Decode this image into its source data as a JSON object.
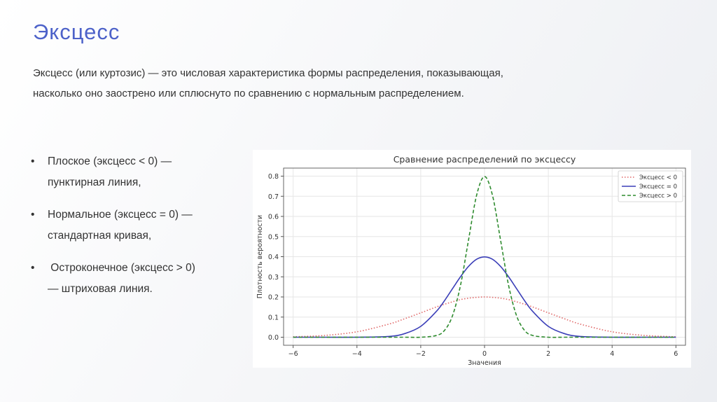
{
  "slide": {
    "title": "Эксцесс",
    "intro": [
      "Эксцесс (или куртозис) — это числовая характеристика формы распределения, показывающая,",
      "насколько оно заострено или сплюснуто по сравнению с нормальным распределением."
    ],
    "bullets": [
      [
        "Плоское (эксцесс < 0) —",
        "пунктирная линия,"
      ],
      [
        "Нормальное (эксцесс = 0) —",
        "стандартная кривая,"
      ],
      [
        " Остроконечное (эксцесс > 0)",
        "— штриховая линия."
      ]
    ]
  },
  "chart_data": {
    "type": "line",
    "title": "Сравнение распределений по эксцессу",
    "xlabel": "Значения",
    "ylabel": "Плотность вероятности",
    "xlim": [
      -6.3,
      6.3
    ],
    "ylim": [
      -0.04,
      0.84
    ],
    "xticks": [
      -6,
      -4,
      -2,
      0,
      2,
      4,
      6
    ],
    "xtick_labels": [
      "−6",
      "−4",
      "−2",
      "0",
      "2",
      "4",
      "6"
    ],
    "yticks": [
      0.0,
      0.1,
      0.2,
      0.3,
      0.4,
      0.5,
      0.6,
      0.7,
      0.8
    ],
    "ytick_labels": [
      "0.0",
      "0.1",
      "0.2",
      "0.3",
      "0.4",
      "0.5",
      "0.6",
      "0.7",
      "0.8"
    ],
    "grid": true,
    "legend_position": "top-right",
    "x": [
      -6,
      -5,
      -4,
      -3,
      -2.5,
      -2,
      -1.5,
      -1.25,
      -1,
      -0.75,
      -0.5,
      -0.25,
      0,
      0.25,
      0.5,
      0.75,
      1,
      1.25,
      1.5,
      2,
      2.5,
      3,
      4,
      5,
      6
    ],
    "series": [
      {
        "name": "Эксцесс < 0",
        "color": "#e06666",
        "style": "dotted",
        "values": [
          0.002,
          0.009,
          0.027,
          0.065,
          0.092,
          0.121,
          0.151,
          0.164,
          0.176,
          0.187,
          0.194,
          0.198,
          0.2,
          0.198,
          0.194,
          0.187,
          0.176,
          0.164,
          0.151,
          0.121,
          0.092,
          0.065,
          0.027,
          0.009,
          0.002
        ]
      },
      {
        "name": "Эксцесс = 0",
        "color": "#3b3fb8",
        "style": "solid",
        "values": [
          0.0,
          0.0,
          0.0,
          0.004,
          0.018,
          0.054,
          0.13,
          0.183,
          0.242,
          0.301,
          0.352,
          0.387,
          0.399,
          0.387,
          0.352,
          0.301,
          0.242,
          0.183,
          0.13,
          0.054,
          0.018,
          0.004,
          0.0,
          0.0,
          0.0
        ]
      },
      {
        "name": "Эксцесс > 0",
        "color": "#2e8b2e",
        "style": "dashed",
        "values": [
          0.0,
          0.0,
          0.0,
          0.0,
          0.0,
          0.0,
          0.009,
          0.035,
          0.108,
          0.26,
          0.484,
          0.704,
          0.798,
          0.704,
          0.484,
          0.26,
          0.108,
          0.035,
          0.009,
          0.0,
          0.0,
          0.0,
          0.0,
          0.0,
          0.0
        ]
      }
    ]
  }
}
